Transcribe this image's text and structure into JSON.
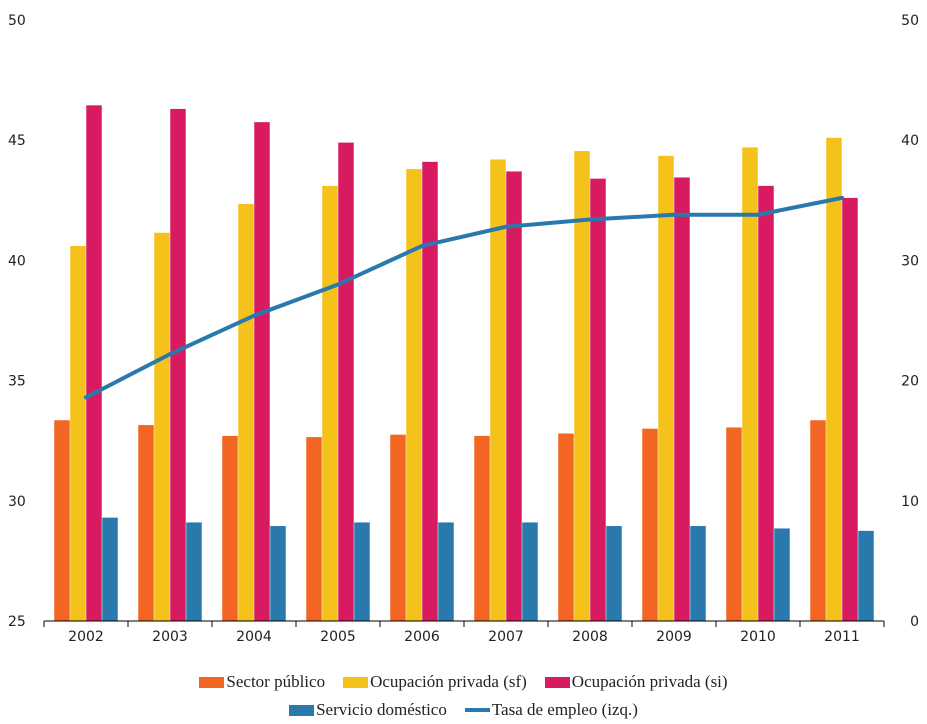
{
  "chart_data": {
    "type": "bar",
    "categories": [
      "2002",
      "2003",
      "2004",
      "2005",
      "2006",
      "2007",
      "2008",
      "2009",
      "2010",
      "2011"
    ],
    "left_axis": {
      "min": 25,
      "max": 50,
      "ticks": [
        "25",
        "30",
        "35",
        "40",
        "45",
        "50"
      ]
    },
    "right_axis": {
      "min": 0,
      "max": 50,
      "ticks": [
        "0",
        "10",
        "20",
        "30",
        "40",
        "50"
      ]
    },
    "series": [
      {
        "name": "Sector público",
        "type": "bar",
        "axis": "right",
        "color": "#f26522",
        "values": [
          16.7,
          16.3,
          15.4,
          15.3,
          15.5,
          15.4,
          15.6,
          16.0,
          16.1,
          16.7
        ]
      },
      {
        "name": "Ocupación privada (sf)",
        "type": "bar",
        "axis": "right",
        "color": "#f5c21b",
        "values": [
          31.2,
          32.3,
          34.7,
          36.2,
          37.6,
          38.4,
          39.1,
          38.7,
          39.4,
          40.2
        ]
      },
      {
        "name": "Ocupación privada (si)",
        "type": "bar",
        "axis": "right",
        "color": "#d81b60",
        "values": [
          42.9,
          42.6,
          41.5,
          39.8,
          38.2,
          37.4,
          36.8,
          36.9,
          36.2,
          35.2
        ]
      },
      {
        "name": "Servicio doméstico",
        "type": "bar",
        "axis": "right",
        "color": "#2a79ad",
        "values": [
          8.6,
          8.2,
          7.9,
          8.2,
          8.2,
          8.2,
          7.9,
          7.9,
          7.7,
          7.5
        ]
      },
      {
        "name": "Tasa de empleo (izq.)",
        "type": "line",
        "axis": "left",
        "color": "#2a79ad",
        "values": [
          34.3,
          36.1,
          37.7,
          39.0,
          40.6,
          41.4,
          41.7,
          41.9,
          41.9,
          42.6
        ]
      }
    ]
  },
  "legend": {
    "row1": [
      "Sector público",
      "Ocupación privada (sf)",
      "Ocupación privada (si)"
    ],
    "row2": [
      "Servicio doméstico",
      "Tasa de empleo (izq.)"
    ]
  }
}
